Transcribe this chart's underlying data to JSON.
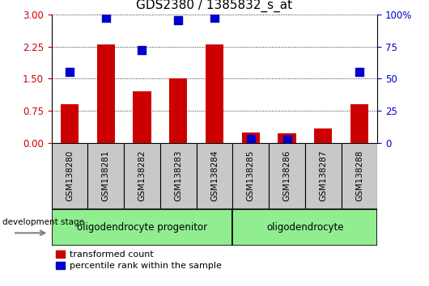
{
  "title": "GDS2380 / 1385832_s_at",
  "samples": [
    "GSM138280",
    "GSM138281",
    "GSM138282",
    "GSM138283",
    "GSM138284",
    "GSM138285",
    "GSM138286",
    "GSM138287",
    "GSM138288"
  ],
  "red_bars": [
    0.9,
    2.3,
    1.2,
    1.5,
    2.3,
    0.25,
    0.22,
    0.33,
    0.9
  ],
  "blue_dots_right": [
    55,
    97.5,
    72,
    95.5,
    97.5,
    3.0,
    2.5,
    null,
    55
  ],
  "ylim_left": [
    0,
    3
  ],
  "ylim_right": [
    0,
    100
  ],
  "yticks_left": [
    0,
    0.75,
    1.5,
    2.25,
    3
  ],
  "yticks_right": [
    0,
    25,
    50,
    75,
    100
  ],
  "bar_color": "#cc0000",
  "dot_color": "#0000cc",
  "group1_label": "oligodendrocyte progenitor",
  "group2_label": "oligodendrocyte",
  "group1_count": 5,
  "group2_count": 4,
  "group_color": "#90ee90",
  "sample_bg_color": "#c8c8c8",
  "xlabel": "development stage",
  "legend_red": "transformed count",
  "legend_blue": "percentile rank within the sample",
  "bar_width": 0.5,
  "dot_size": 55,
  "fig_width": 5.3,
  "fig_height": 3.54
}
